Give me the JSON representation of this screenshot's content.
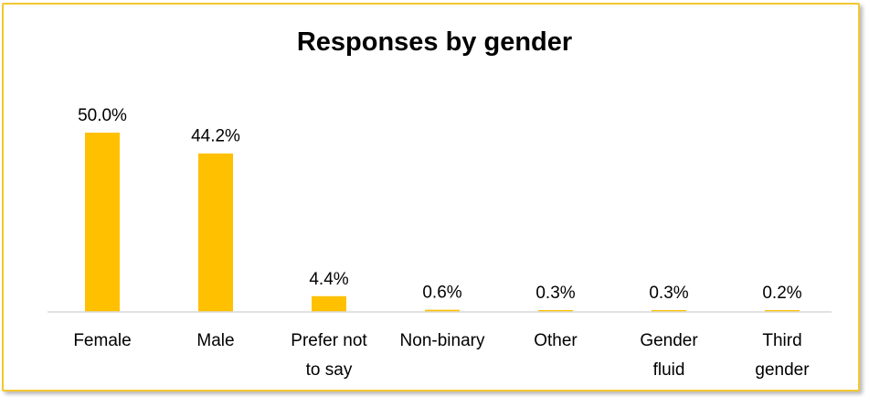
{
  "chart_data": {
    "type": "bar",
    "title": "Responses by gender",
    "categories": [
      [
        "Female"
      ],
      [
        "Male"
      ],
      [
        "Prefer not",
        "to say"
      ],
      [
        "Non-binary"
      ],
      [
        "Other"
      ],
      [
        "Gender",
        "fluid"
      ],
      [
        "Third",
        "gender"
      ]
    ],
    "values": [
      50.0,
      44.2,
      4.4,
      0.6,
      0.3,
      0.3,
      0.2
    ],
    "data_labels": [
      "50.0%",
      "44.2%",
      "4.4%",
      "0.6%",
      "0.3%",
      "0.3%",
      "0.2%"
    ],
    "xlabel": "",
    "ylabel": "",
    "ylim": [
      0,
      50
    ],
    "grid": false,
    "legend": "none",
    "bar_color": "#ffc000",
    "axis_color": "#d9d9d9",
    "frame_color": "#f3c832"
  }
}
